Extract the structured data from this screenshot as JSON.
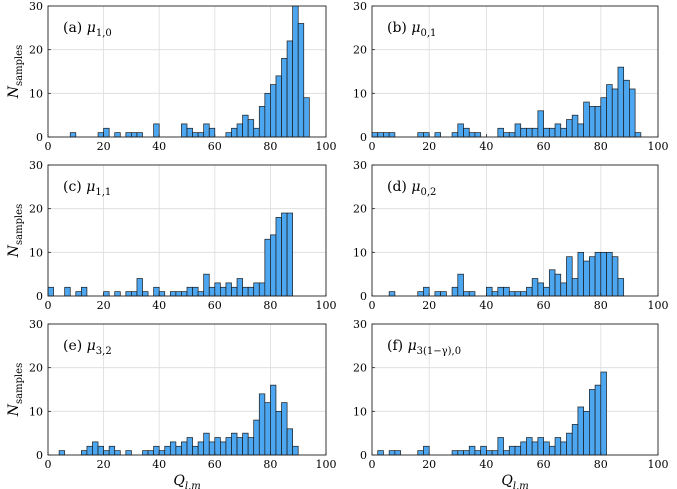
{
  "chart_data": [
    {
      "type": "bar",
      "panel": "(a)",
      "label_sym": "μ",
      "label_sub": "1,0",
      "bin_centers": [
        1,
        3,
        5,
        7,
        9,
        11,
        13,
        15,
        17,
        19,
        21,
        23,
        25,
        27,
        29,
        31,
        33,
        35,
        37,
        39,
        41,
        43,
        45,
        47,
        49,
        51,
        53,
        55,
        57,
        59,
        61,
        63,
        65,
        67,
        69,
        71,
        73,
        75,
        77,
        79,
        81,
        83,
        85,
        87,
        89,
        91,
        93
      ],
      "values": [
        0,
        0,
        0,
        0,
        1,
        0,
        0,
        0,
        0,
        1,
        2,
        0,
        1,
        0,
        1,
        1,
        1,
        0,
        0,
        3,
        0,
        0,
        0,
        0,
        3,
        2,
        1,
        1,
        3,
        2,
        0,
        0,
        1,
        2,
        3,
        5,
        4,
        2,
        7,
        10,
        12,
        14,
        18,
        22,
        30,
        26,
        9
      ],
      "xlim": [
        0,
        100
      ],
      "ylim": [
        0,
        30
      ],
      "xticks": [
        0,
        20,
        40,
        60,
        80,
        100
      ],
      "yticks": [
        0,
        10,
        20,
        30
      ],
      "ylabel": "N",
      "ylabel_sub": "samples",
      "xlabel": "",
      "grid": true
    },
    {
      "type": "bar",
      "panel": "(b)",
      "label_sym": "μ",
      "label_sub": "0,1",
      "bin_centers": [
        1,
        3,
        5,
        7,
        9,
        11,
        13,
        15,
        17,
        19,
        21,
        23,
        25,
        27,
        29,
        31,
        33,
        35,
        37,
        39,
        41,
        43,
        45,
        47,
        49,
        51,
        53,
        55,
        57,
        59,
        61,
        63,
        65,
        67,
        69,
        71,
        73,
        75,
        77,
        79,
        81,
        83,
        85,
        87,
        89,
        91,
        93
      ],
      "values": [
        1,
        1,
        1,
        1,
        0,
        0,
        0,
        0,
        1,
        1,
        0,
        1,
        0,
        0,
        1,
        3,
        2,
        1,
        1,
        0,
        0,
        0,
        2,
        1,
        1,
        3,
        2,
        2,
        2,
        6,
        2,
        2,
        3,
        2,
        4,
        5,
        3,
        8,
        7,
        7,
        9,
        12,
        11,
        16,
        13,
        11,
        1
      ],
      "xlim": [
        0,
        100
      ],
      "ylim": [
        0,
        30
      ],
      "xticks": [
        0,
        20,
        40,
        60,
        80,
        100
      ],
      "yticks": [
        0,
        10,
        20,
        30
      ],
      "ylabel": "",
      "xlabel": "",
      "grid": true
    },
    {
      "type": "bar",
      "panel": "(c)",
      "label_sym": "μ",
      "label_sub": "1,1",
      "bin_centers": [
        1,
        3,
        5,
        7,
        9,
        11,
        13,
        15,
        17,
        19,
        21,
        23,
        25,
        27,
        29,
        31,
        33,
        35,
        37,
        39,
        41,
        43,
        45,
        47,
        49,
        51,
        53,
        55,
        57,
        59,
        61,
        63,
        65,
        67,
        69,
        71,
        73,
        75,
        77,
        79,
        81,
        83,
        85,
        87,
        89,
        91,
        93
      ],
      "values": [
        2,
        0,
        0,
        2,
        0,
        1,
        2,
        0,
        0,
        0,
        1,
        0,
        1,
        0,
        1,
        1,
        4,
        1,
        0,
        2,
        1,
        0,
        1,
        1,
        1,
        2,
        2,
        1,
        5,
        2,
        3,
        2,
        3,
        2,
        4,
        2,
        2,
        3,
        3,
        13,
        14,
        18,
        19,
        19,
        0,
        0,
        0
      ],
      "xlim": [
        0,
        100
      ],
      "ylim": [
        0,
        30
      ],
      "xticks": [
        0,
        20,
        40,
        60,
        80,
        100
      ],
      "yticks": [
        0,
        10,
        20,
        30
      ],
      "ylabel": "N",
      "ylabel_sub": "samples",
      "xlabel": "",
      "grid": true
    },
    {
      "type": "bar",
      "panel": "(d)",
      "label_sym": "μ",
      "label_sub": "0,2",
      "bin_centers": [
        1,
        3,
        5,
        7,
        9,
        11,
        13,
        15,
        17,
        19,
        21,
        23,
        25,
        27,
        29,
        31,
        33,
        35,
        37,
        39,
        41,
        43,
        45,
        47,
        49,
        51,
        53,
        55,
        57,
        59,
        61,
        63,
        65,
        67,
        69,
        71,
        73,
        75,
        77,
        79,
        81,
        83,
        85,
        87,
        89,
        91,
        93
      ],
      "values": [
        0,
        0,
        0,
        1,
        0,
        0,
        0,
        0,
        1,
        2,
        0,
        1,
        1,
        0,
        2,
        5,
        1,
        1,
        0,
        0,
        2,
        1,
        2,
        2,
        1,
        1,
        1,
        2,
        4,
        3,
        2,
        6,
        5,
        3,
        9,
        4,
        10,
        8,
        9,
        10,
        10,
        10,
        9,
        4,
        0,
        0,
        0
      ],
      "xlim": [
        0,
        100
      ],
      "ylim": [
        0,
        30
      ],
      "xticks": [
        0,
        20,
        40,
        60,
        80,
        100
      ],
      "yticks": [
        0,
        10,
        20,
        30
      ],
      "ylabel": "",
      "xlabel": "",
      "grid": true
    },
    {
      "type": "bar",
      "panel": "(e)",
      "label_sym": "μ",
      "label_sub": "3,2",
      "bin_centers": [
        1,
        3,
        5,
        7,
        9,
        11,
        13,
        15,
        17,
        19,
        21,
        23,
        25,
        27,
        29,
        31,
        33,
        35,
        37,
        39,
        41,
        43,
        45,
        47,
        49,
        51,
        53,
        55,
        57,
        59,
        61,
        63,
        65,
        67,
        69,
        71,
        73,
        75,
        77,
        79,
        81,
        83,
        85,
        87,
        89,
        91,
        93
      ],
      "values": [
        0,
        0,
        1,
        0,
        0,
        0,
        1,
        2,
        3,
        2,
        1,
        2,
        1,
        0,
        1,
        0,
        0,
        1,
        1,
        2,
        1,
        2,
        3,
        2,
        3,
        4,
        2,
        3,
        5,
        3,
        4,
        3,
        4,
        5,
        4,
        5,
        4,
        8,
        14,
        12,
        16,
        10,
        12,
        6,
        2,
        0,
        0
      ],
      "xlim": [
        0,
        100
      ],
      "ylim": [
        0,
        30
      ],
      "xticks": [
        0,
        20,
        40,
        60,
        80,
        100
      ],
      "yticks": [
        0,
        10,
        20,
        30
      ],
      "ylabel": "N",
      "ylabel_sub": "samples",
      "xlabel": "Q",
      "xlabel_sub": "l,m",
      "grid": true
    },
    {
      "type": "bar",
      "panel": "(f)",
      "label_sym": "μ",
      "label_sub": "3(1−γ),0",
      "bin_centers": [
        1,
        3,
        5,
        7,
        9,
        11,
        13,
        15,
        17,
        19,
        21,
        23,
        25,
        27,
        29,
        31,
        33,
        35,
        37,
        39,
        41,
        43,
        45,
        47,
        49,
        51,
        53,
        55,
        57,
        59,
        61,
        63,
        65,
        67,
        69,
        71,
        73,
        75,
        77,
        79,
        81,
        83,
        85,
        87,
        89,
        91,
        93
      ],
      "values": [
        0,
        1,
        0,
        1,
        1,
        0,
        0,
        0,
        1,
        2,
        0,
        0,
        0,
        0,
        1,
        1,
        1,
        2,
        1,
        2,
        1,
        1,
        4,
        1,
        2,
        2,
        3,
        4,
        3,
        4,
        3,
        2,
        4,
        3,
        5,
        7,
        11,
        10,
        15,
        16,
        19,
        0,
        0,
        0,
        0,
        0,
        0
      ],
      "xlim": [
        0,
        100
      ],
      "ylim": [
        0,
        30
      ],
      "xticks": [
        0,
        20,
        40,
        60,
        80,
        100
      ],
      "yticks": [
        0,
        10,
        20,
        30
      ],
      "ylabel": "",
      "xlabel": "Q",
      "xlabel_sub": "l,m",
      "grid": true
    }
  ],
  "colors": {
    "bar_fill": "#4da6f0",
    "bar_edge": "#1a1a1a",
    "grid": "#dcdcdc"
  }
}
